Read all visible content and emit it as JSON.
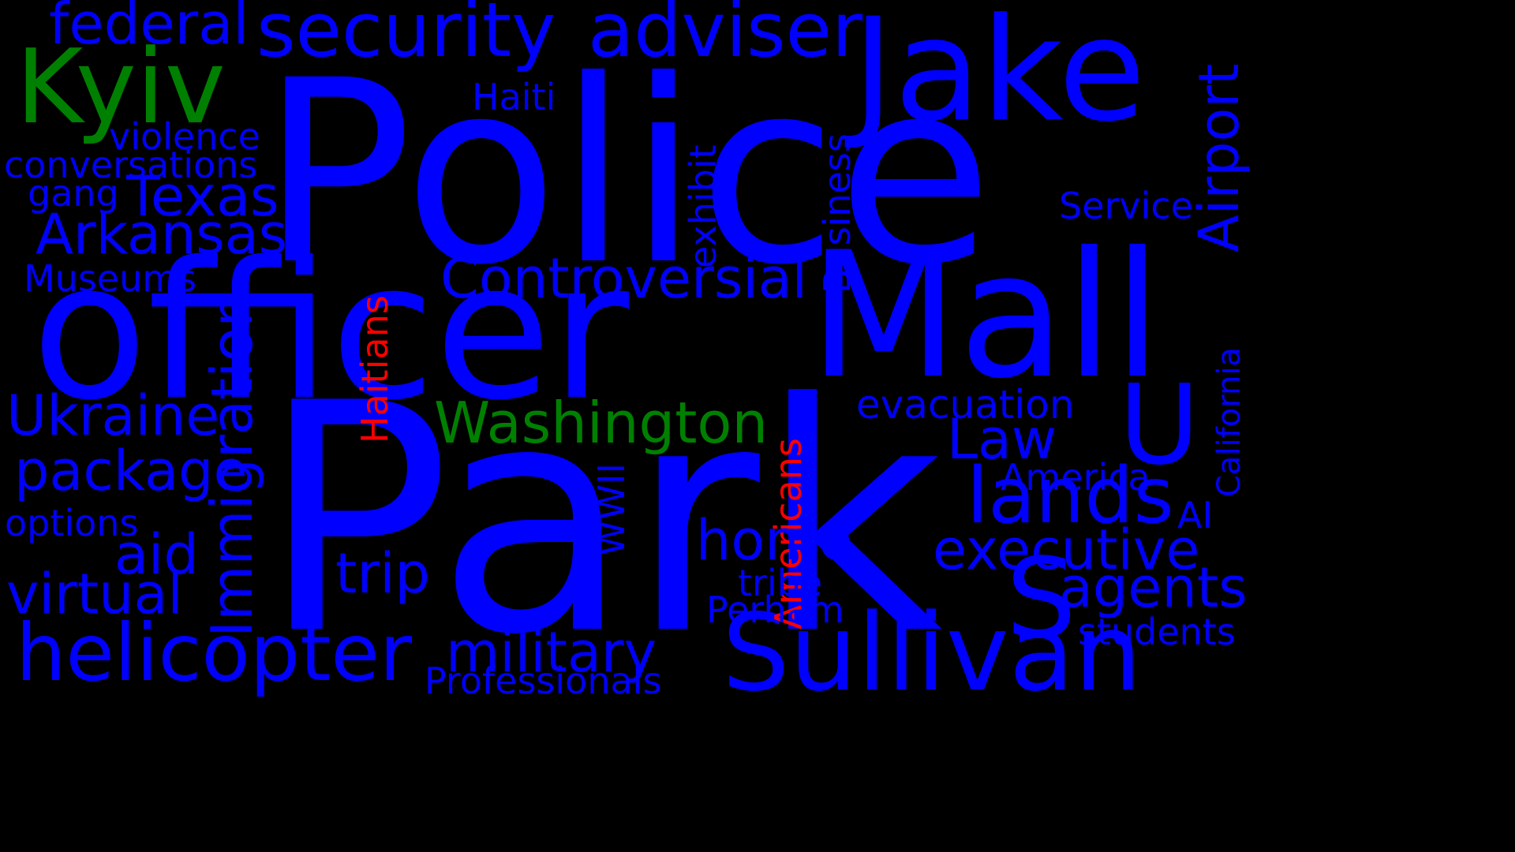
{
  "colors": {
    "background": "#000000",
    "blue": "#0000ff",
    "green": "#008000",
    "red": "#ff0000"
  },
  "words": [
    {
      "id": "w-police",
      "text": "Police",
      "color": "blue"
    },
    {
      "id": "w-park",
      "text": "Park",
      "color": "blue"
    },
    {
      "id": "w-officer",
      "text": "officer",
      "color": "blue"
    },
    {
      "id": "w-mall",
      "text": "Mall",
      "color": "blue"
    },
    {
      "id": "w-jake",
      "text": "Jake",
      "color": "blue"
    },
    {
      "id": "w-sullivan",
      "text": "Sullivan",
      "color": "blue"
    },
    {
      "id": "w-security",
      "text": "security",
      "color": "blue"
    },
    {
      "id": "w-adviser",
      "text": "adviser",
      "color": "blue"
    },
    {
      "id": "w-federal",
      "text": "federal",
      "color": "blue"
    },
    {
      "id": "w-kyiv",
      "text": "Kyiv",
      "color": "green"
    },
    {
      "id": "w-violence",
      "text": "violence",
      "color": "blue"
    },
    {
      "id": "w-conversations",
      "text": "conversations",
      "color": "blue"
    },
    {
      "id": "w-gang",
      "text": "gang",
      "color": "blue"
    },
    {
      "id": "w-texas",
      "text": "Texas",
      "color": "blue"
    },
    {
      "id": "w-arkansas",
      "text": "Arkansas",
      "color": "blue"
    },
    {
      "id": "w-museums",
      "text": "Museums",
      "color": "blue"
    },
    {
      "id": "w-ukraine",
      "text": "Ukraine",
      "color": "blue"
    },
    {
      "id": "w-package",
      "text": "package",
      "color": "blue"
    },
    {
      "id": "w-options",
      "text": "options",
      "color": "blue"
    },
    {
      "id": "w-aid",
      "text": "aid",
      "color": "blue"
    },
    {
      "id": "w-virtual",
      "text": "virtual",
      "color": "blue"
    },
    {
      "id": "w-helicopter",
      "text": "helicopter",
      "color": "blue"
    },
    {
      "id": "w-immigration",
      "text": "Immigration",
      "color": "blue"
    },
    {
      "id": "w-haitians",
      "text": "Haitians",
      "color": "red"
    },
    {
      "id": "w-haiti",
      "text": "Haiti",
      "color": "blue"
    },
    {
      "id": "w-controversial",
      "text": "Controversial",
      "color": "blue"
    },
    {
      "id": "w-washington",
      "text": "Washington",
      "color": "green"
    },
    {
      "id": "w-trip",
      "text": "trip",
      "color": "blue"
    },
    {
      "id": "w-military",
      "text": "military",
      "color": "blue"
    },
    {
      "id": "w-professionals",
      "text": "Professionals",
      "color": "blue"
    },
    {
      "id": "w-wwii",
      "text": "WWII",
      "color": "blue"
    },
    {
      "id": "w-exhibit",
      "text": "exhibit",
      "color": "blue"
    },
    {
      "id": "w-business",
      "text": "Business",
      "color": "blue"
    },
    {
      "id": "w-americans",
      "text": "Americans",
      "color": "red"
    },
    {
      "id": "w-home",
      "text": "home",
      "color": "blue"
    },
    {
      "id": "w-tribe",
      "text": "tribe",
      "color": "blue"
    },
    {
      "id": "w-perham",
      "text": "Perham",
      "color": "blue"
    },
    {
      "id": "w-evacuation",
      "text": "evacuation",
      "color": "blue"
    },
    {
      "id": "w-law",
      "text": "Law",
      "color": "blue"
    },
    {
      "id": "w-lands",
      "text": "lands",
      "color": "blue"
    },
    {
      "id": "w-u",
      "text": "U",
      "color": "blue"
    },
    {
      "id": "w-s",
      "text": "S",
      "color": "blue"
    },
    {
      "id": "w-executive",
      "text": "executive",
      "color": "blue"
    },
    {
      "id": "w-agents",
      "text": "agents",
      "color": "blue"
    },
    {
      "id": "w-students",
      "text": "students",
      "color": "blue"
    },
    {
      "id": "w-america",
      "text": "America",
      "color": "blue"
    },
    {
      "id": "w-ai",
      "text": "AI",
      "color": "blue"
    },
    {
      "id": "w-service",
      "text": "Service",
      "color": "blue"
    },
    {
      "id": "w-airport",
      "text": "Airport",
      "color": "blue"
    },
    {
      "id": "w-california",
      "text": "California",
      "color": "blue"
    }
  ]
}
